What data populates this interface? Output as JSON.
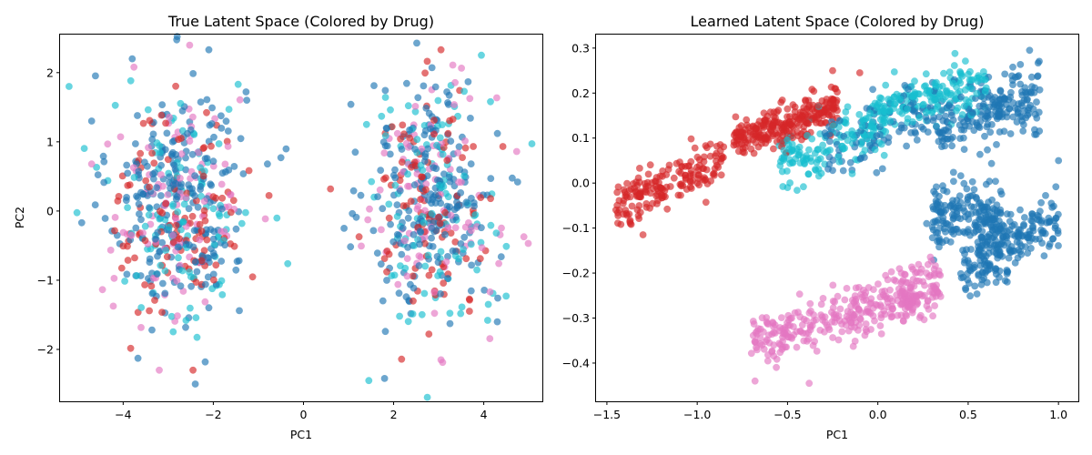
{
  "figure": {
    "charts": [
      {
        "title": "True Latent Space (Colored by Drug)",
        "xlabel": "PC1",
        "ylabel": "PC2"
      },
      {
        "title": "Learned Latent Space (Colored by Drug)",
        "xlabel": "PC1",
        "ylabel": ""
      }
    ]
  },
  "chart_data": [
    {
      "type": "scatter",
      "title": "True Latent Space (Colored by Drug)",
      "xlabel": "PC1",
      "ylabel": "PC2",
      "xlim": [
        -5.4,
        5.3
      ],
      "ylim": [
        -2.75,
        2.55
      ],
      "xticks": [
        -4,
        -2,
        0,
        2,
        4
      ],
      "yticks": [
        -2,
        -1,
        0,
        1,
        2
      ],
      "grid": false,
      "legend": "none",
      "marker_alpha": 0.65,
      "series": [
        {
          "color": "#1f77b4",
          "clusters": [
            {
              "cx": -2.8,
              "cy": 0.2,
              "sx": 0.75,
              "sy": 0.9,
              "n": 230
            },
            {
              "cx": 2.85,
              "cy": 0.2,
              "sx": 0.7,
              "sy": 0.85,
              "n": 210
            }
          ]
        },
        {
          "color": "#17becf",
          "clusters": [
            {
              "cx": -2.7,
              "cy": 0.0,
              "sx": 0.8,
              "sy": 0.85,
              "n": 110
            },
            {
              "cx": 2.9,
              "cy": 0.1,
              "sx": 0.75,
              "sy": 0.85,
              "n": 100
            }
          ]
        },
        {
          "color": "#d62728",
          "clusters": [
            {
              "cx": -2.75,
              "cy": 0.0,
              "sx": 0.7,
              "sy": 0.8,
              "n": 110
            },
            {
              "cx": 2.85,
              "cy": 0.1,
              "sx": 0.7,
              "sy": 0.8,
              "n": 100
            }
          ]
        },
        {
          "color": "#e377c2",
          "clusters": [
            {
              "cx": -2.8,
              "cy": 0.0,
              "sx": 0.75,
              "sy": 0.85,
              "n": 100
            },
            {
              "cx": 2.8,
              "cy": 0.1,
              "sx": 0.75,
              "sy": 0.85,
              "n": 95
            }
          ]
        }
      ],
      "points": [
        {
          "x": -5.2,
          "y": 1.8,
          "color": "#17becf"
        },
        {
          "x": -2.1,
          "y": 2.33,
          "color": "#1f77b4"
        },
        {
          "x": 3.05,
          "y": 2.33,
          "color": "#d62728"
        },
        {
          "x": -2.4,
          "y": -2.5,
          "color": "#1f77b4"
        },
        {
          "x": -2.45,
          "y": -2.3,
          "color": "#d62728"
        },
        {
          "x": -3.2,
          "y": -2.3,
          "color": "#e377c2"
        },
        {
          "x": 1.45,
          "y": -2.45,
          "color": "#17becf"
        },
        {
          "x": 1.8,
          "y": -2.42,
          "color": "#1f77b4"
        },
        {
          "x": 3.05,
          "y": -2.15,
          "color": "#e377c2"
        },
        {
          "x": 0.6,
          "y": 0.32,
          "color": "#d62728"
        },
        {
          "x": 4.75,
          "y": 0.42,
          "color": "#1f77b4"
        },
        {
          "x": -0.5,
          "y": 0.77,
          "color": "#1f77b4"
        },
        {
          "x": -0.8,
          "y": 0.68,
          "color": "#1f77b4"
        },
        {
          "x": 4.15,
          "y": 1.58,
          "color": "#17becf"
        },
        {
          "x": -4.7,
          "y": 0.68,
          "color": "#e377c2"
        },
        {
          "x": -4.7,
          "y": 1.3,
          "color": "#1f77b4"
        },
        {
          "x": 4.3,
          "y": -1.6,
          "color": "#1f77b4"
        },
        {
          "x": 4.1,
          "y": -1.35,
          "color": "#17becf"
        },
        {
          "x": 0.9,
          "y": -0.25,
          "color": "#1f77b4"
        },
        {
          "x": 1.4,
          "y": 1.25,
          "color": "#17becf"
        },
        {
          "x": -1.45,
          "y": 1.83,
          "color": "#17becf"
        },
        {
          "x": -3.8,
          "y": 2.2,
          "color": "#1f77b4"
        }
      ]
    },
    {
      "type": "scatter",
      "title": "Learned Latent Space (Colored by Drug)",
      "xlabel": "PC1",
      "ylabel": "",
      "xlim": [
        -1.56,
        1.11
      ],
      "ylim": [
        -0.485,
        0.33
      ],
      "xticks": [
        -1.5,
        -1.0,
        -0.5,
        0.0,
        0.5,
        1.0
      ],
      "yticks": [
        -0.4,
        -0.3,
        -0.2,
        -0.1,
        0.0,
        0.1,
        0.2,
        0.3
      ],
      "grid": false,
      "legend": "none",
      "marker_alpha": 0.65,
      "series": [
        {
          "color": "#d62728",
          "clusters": [
            {
              "cx": -1.15,
              "cy": 0.0,
              "sx": 0.13,
              "sy": 0.025,
              "slope": 0.17,
              "x_range": [
                -1.45,
                -0.85
              ],
              "n": 180
            },
            {
              "cx": -0.5,
              "cy": 0.13,
              "sx": 0.18,
              "sy": 0.022,
              "slope": 0.14,
              "x_range": [
                -0.8,
                -0.22
              ],
              "n": 260
            }
          ]
        },
        {
          "color": "#17becf",
          "clusters": [
            {
              "cx": -0.25,
              "cy": 0.09,
              "sx": 0.15,
              "sy": 0.035,
              "slope": 0.12,
              "x_range": [
                -0.55,
                0.05
              ],
              "n": 150
            },
            {
              "cx": 0.3,
              "cy": 0.19,
              "sx": 0.18,
              "sy": 0.03,
              "slope": 0.1,
              "x_range": [
                -0.05,
                0.6
              ],
              "n": 180
            }
          ]
        },
        {
          "color": "#1f77b4",
          "clusters": [
            {
              "cx": 0.05,
              "cy": 0.12,
              "sx": 0.15,
              "sy": 0.04,
              "slope": 0.1,
              "x_range": [
                -0.3,
                0.35
              ],
              "n": 110
            },
            {
              "cx": 0.6,
              "cy": 0.16,
              "sx": 0.13,
              "sy": 0.035,
              "slope": 0.12,
              "x_range": [
                0.35,
                0.9
              ],
              "n": 200
            },
            {
              "cx": 0.5,
              "cy": -0.07,
              "sx": 0.07,
              "sy": 0.04,
              "slope": 0.0,
              "x_range": [
                0.3,
                0.7
              ],
              "n": 180
            },
            {
              "cx": 0.75,
              "cy": -0.12,
              "sx": 0.09,
              "sy": 0.035,
              "slope": 0.15,
              "x_range": [
                0.55,
                1.0
              ],
              "n": 170
            },
            {
              "cx": 0.58,
              "cy": -0.2,
              "sx": 0.06,
              "sy": 0.025,
              "slope": 0.0,
              "x_range": [
                0.45,
                0.72
              ],
              "n": 50
            }
          ]
        },
        {
          "color": "#e377c2",
          "clusters": [
            {
              "cx": -0.35,
              "cy": -0.31,
              "sx": 0.12,
              "sy": 0.03,
              "slope": 0.12,
              "x_range": [
                -0.7,
                -0.1
              ],
              "n": 160
            },
            {
              "cx": 0.1,
              "cy": -0.26,
              "sx": 0.12,
              "sy": 0.03,
              "slope": 0.12,
              "x_range": [
                -0.15,
                0.35
              ],
              "n": 200
            }
          ]
        }
      ],
      "points": [
        {
          "x": -1.45,
          "y": -0.06,
          "color": "#d62728"
        },
        {
          "x": -1.37,
          "y": -0.09,
          "color": "#d62728"
        },
        {
          "x": -1.3,
          "y": -0.115,
          "color": "#d62728"
        },
        {
          "x": -0.68,
          "y": -0.44,
          "color": "#e377c2"
        },
        {
          "x": -0.38,
          "y": -0.445,
          "color": "#e377c2"
        },
        {
          "x": 0.27,
          "y": -0.09,
          "color": "#1f77b4"
        },
        {
          "x": 0.84,
          "y": 0.295,
          "color": "#1f77b4"
        },
        {
          "x": 1.0,
          "y": 0.05,
          "color": "#1f77b4"
        },
        {
          "x": -0.5,
          "y": -0.01,
          "color": "#17becf"
        },
        {
          "x": -0.25,
          "y": 0.25,
          "color": "#d62728"
        },
        {
          "x": -0.1,
          "y": 0.245,
          "color": "#d62728"
        }
      ]
    }
  ]
}
